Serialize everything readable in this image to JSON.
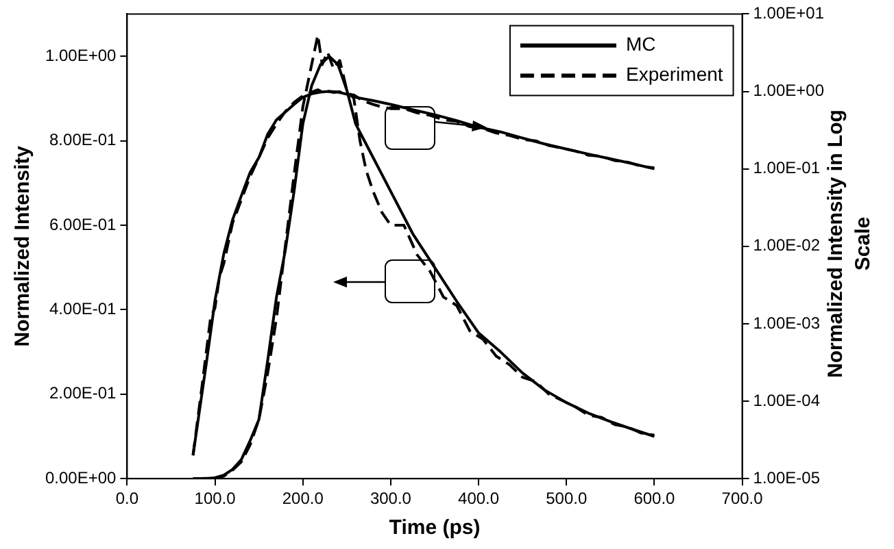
{
  "chart_data": {
    "type": "line",
    "xlabel": "Time (ps)",
    "ylabel": "Normalized Intensity",
    "y2label": "Normalized Intensity in Log Scale",
    "xlim": [
      0,
      700
    ],
    "xticks": [
      {
        "value": 0,
        "label": "0.0"
      },
      {
        "value": 100,
        "label": "100.0"
      },
      {
        "value": 200,
        "label": "200.0"
      },
      {
        "value": 300,
        "label": "300.0"
      },
      {
        "value": 400,
        "label": "400.0"
      },
      {
        "value": 500,
        "label": "500.0"
      },
      {
        "value": 600,
        "label": "600.0"
      },
      {
        "value": 700,
        "label": "700.0"
      }
    ],
    "ylim": [
      0,
      1.1
    ],
    "yticks": [
      {
        "value": 0,
        "label": "0.00E+00"
      },
      {
        "value": 0.2,
        "label": "2.00E-01"
      },
      {
        "value": 0.4,
        "label": "4.00E-01"
      },
      {
        "value": 0.6,
        "label": "6.00E-01"
      },
      {
        "value": 0.8,
        "label": "8.00E-01"
      },
      {
        "value": 1,
        "label": "1.00E+00"
      }
    ],
    "y2lim": [
      1e-05,
      10
    ],
    "y2ticks": [
      {
        "value": 1e-05,
        "label": "1.00E-05"
      },
      {
        "value": 0.0001,
        "label": "1.00E-04"
      },
      {
        "value": 0.001,
        "label": "1.00E-03"
      },
      {
        "value": 0.01,
        "label": "1.00E-02"
      },
      {
        "value": 0.1,
        "label": "1.00E-01"
      },
      {
        "value": 1,
        "label": "1.00E+00"
      },
      {
        "value": 10,
        "label": "1.00E+01"
      }
    ],
    "log": "y2",
    "grid": false,
    "legend": "top right",
    "marker": "none",
    "series": [
      {
        "name": "MC",
        "color": "#000000",
        "line_style": "solid",
        "x": [
          75,
          90,
          100,
          110,
          120,
          130,
          140,
          150,
          160,
          170,
          180,
          190,
          200,
          210,
          220,
          230,
          240,
          250,
          260,
          280,
          300,
          325,
          350,
          375,
          400,
          425,
          450,
          475,
          500,
          525,
          550,
          575,
          600
        ],
        "values": [
          2e-05,
          0.0003,
          0.002,
          0.008,
          0.022,
          0.045,
          0.09,
          0.14,
          0.28,
          0.43,
          0.54,
          0.68,
          0.84,
          0.93,
          0.98,
          1.0,
          0.98,
          0.92,
          0.84,
          0.76,
          0.68,
          0.58,
          0.5,
          0.42,
          0.345,
          0.3,
          0.25,
          0.21,
          0.18,
          0.155,
          0.135,
          0.117,
          0.1
        ]
      },
      {
        "name": "Experiment",
        "color": "#000000",
        "line_style": "dashed",
        "x": [
          75,
          85,
          95,
          100,
          105,
          110,
          120,
          130,
          140,
          150,
          160,
          170,
          180,
          190,
          200,
          210,
          217,
          222,
          228,
          235,
          242,
          250,
          258,
          265,
          272,
          280,
          290,
          300,
          315,
          330,
          345,
          360,
          375,
          390,
          405,
          420,
          435,
          450,
          465,
          480,
          495,
          510,
          525,
          540,
          555,
          570,
          585,
          600
        ],
        "values": [
          2e-05,
          0.00015,
          0.0012,
          0.0016,
          0.004,
          0.006,
          0.02,
          0.04,
          0.08,
          0.14,
          0.25,
          0.38,
          0.55,
          0.72,
          0.88,
          0.98,
          1.05,
          0.98,
          1.01,
          0.97,
          0.99,
          0.92,
          0.9,
          0.8,
          0.73,
          0.68,
          0.63,
          0.6,
          0.6,
          0.53,
          0.49,
          0.43,
          0.41,
          0.35,
          0.33,
          0.29,
          0.27,
          0.24,
          0.23,
          0.2,
          0.185,
          0.17,
          0.15,
          0.145,
          0.128,
          0.122,
          0.108,
          0.103
        ]
      },
      {
        "color": "#000000",
        "line_style": "solid",
        "axis": "y2",
        "x": [
          75,
          90,
          100,
          110,
          120,
          130,
          140,
          150,
          160,
          170,
          180,
          190,
          200,
          210,
          220,
          230,
          240,
          250,
          260,
          280,
          300,
          325,
          350,
          375,
          400,
          425,
          450,
          475,
          500,
          525,
          550,
          575,
          600
        ],
        "values": [
          2e-05,
          0.0003,
          0.002,
          0.008,
          0.022,
          0.045,
          0.09,
          0.14,
          0.28,
          0.43,
          0.54,
          0.68,
          0.84,
          0.93,
          0.98,
          1.0,
          0.98,
          0.92,
          0.84,
          0.76,
          0.68,
          0.58,
          0.5,
          0.42,
          0.345,
          0.3,
          0.25,
          0.21,
          0.18,
          0.155,
          0.135,
          0.117,
          0.1
        ]
      },
      {
        "color": "#000000",
        "line_style": "dashed",
        "axis": "y2",
        "x": [
          75,
          85,
          95,
          100,
          105,
          110,
          120,
          130,
          140,
          150,
          160,
          170,
          180,
          190,
          200,
          210,
          217,
          222,
          228,
          235,
          242,
          250,
          258,
          265,
          272,
          280,
          290,
          300,
          315,
          330,
          345,
          360,
          375,
          390,
          405,
          420,
          435,
          450,
          465,
          480,
          495,
          510,
          525,
          540,
          555,
          570,
          585,
          600
        ],
        "values": [
          2e-05,
          0.00015,
          0.0012,
          0.0016,
          0.004,
          0.006,
          0.02,
          0.04,
          0.08,
          0.14,
          0.25,
          0.38,
          0.55,
          0.72,
          0.88,
          0.98,
          1.05,
          0.98,
          1.01,
          0.97,
          0.99,
          0.92,
          0.9,
          0.8,
          0.73,
          0.68,
          0.63,
          0.6,
          0.6,
          0.53,
          0.49,
          0.43,
          0.41,
          0.35,
          0.33,
          0.29,
          0.27,
          0.24,
          0.23,
          0.2,
          0.185,
          0.17,
          0.15,
          0.145,
          0.128,
          0.122,
          0.108,
          0.103
        ]
      }
    ]
  }
}
